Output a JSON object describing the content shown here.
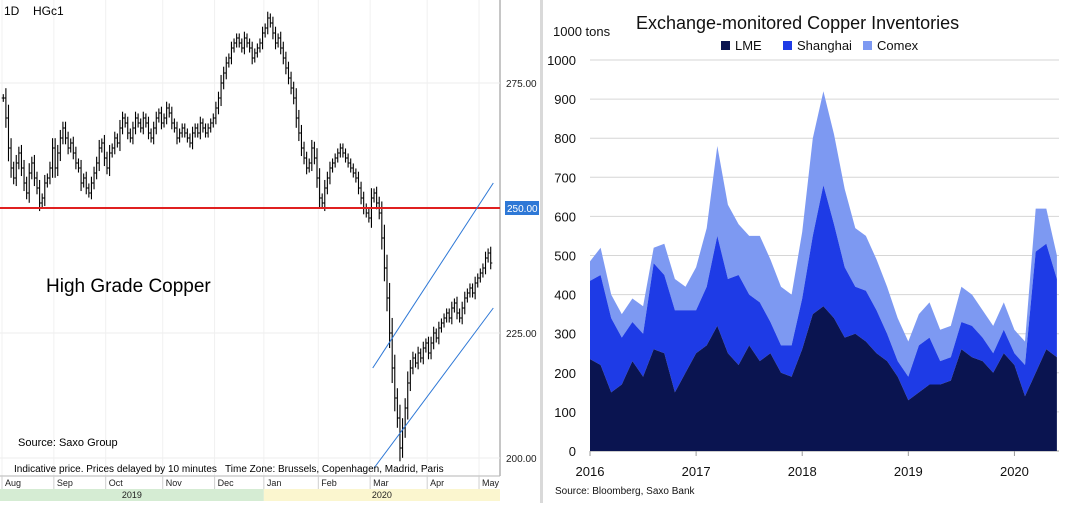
{
  "chart_data": [
    {
      "type": "ohlc",
      "interval": "1D",
      "symbol": "HGc1",
      "title": "High Grade Copper",
      "source": "Source: Saxo Group",
      "footer": "Indicative price. Prices delayed by 10 minutes   Time Zone: Brussels, Copenhagen, Madrid, Paris",
      "y_ticks": [
        "275.00",
        "250.00",
        "225.00",
        "200.00"
      ],
      "ylim": [
        198,
        290
      ],
      "horizontal_level": {
        "value": 250,
        "label": "250.00",
        "color": "#e02020"
      },
      "channel_lines": [
        {
          "from": [
            "Mar",
            218
          ],
          "to": [
            "May",
            255
          ]
        },
        {
          "from": [
            "Mar",
            198
          ],
          "to": [
            "May",
            230
          ]
        }
      ],
      "month_labels": [
        "Aug",
        "Sep",
        "Oct",
        "Nov",
        "Dec",
        "Jan",
        "Feb",
        "Mar",
        "Apr",
        "May"
      ],
      "year_labels": [
        "2019",
        "2020"
      ],
      "year_colors": {
        "2019": "#d5ecd3",
        "2020": "#fbf6cf"
      },
      "months": [
        {
          "m": "Aug",
          "close": [
            272,
            268,
            262,
            258,
            256,
            259,
            261,
            258,
            255,
            253,
            257,
            259,
            256,
            254,
            251,
            252,
            255,
            256,
            258,
            262
          ]
        },
        {
          "m": "Sep",
          "close": [
            258,
            261,
            264,
            266,
            264,
            262,
            263,
            261,
            259,
            258,
            255,
            256,
            254,
            253,
            255,
            257,
            259,
            262,
            263,
            260
          ]
        },
        {
          "m": "Oct",
          "close": [
            258,
            261,
            262,
            264,
            263,
            266,
            268,
            267,
            265,
            264,
            266,
            268,
            267,
            266,
            268,
            267,
            265,
            264,
            266,
            268,
            269,
            267
          ]
        },
        {
          "m": "Nov",
          "close": [
            268,
            270,
            269,
            267,
            266,
            264,
            265,
            266,
            265,
            264,
            263,
            265,
            266,
            265,
            267,
            266,
            265,
            266,
            267,
            268
          ]
        },
        {
          "m": "Dec",
          "close": [
            270,
            272,
            275,
            277,
            279,
            280,
            282,
            283,
            284,
            283,
            282,
            284,
            283,
            282,
            280,
            281,
            282,
            283,
            285
          ]
        },
        {
          "m": "Jan",
          "close": [
            286,
            288,
            287,
            285,
            283,
            284,
            282,
            280,
            278,
            276,
            274,
            272,
            268,
            265,
            262,
            260,
            258,
            259,
            262,
            260,
            256
          ]
        },
        {
          "m": "Feb",
          "close": [
            252,
            251,
            254,
            256,
            258,
            259,
            260,
            261,
            262,
            261,
            260,
            259,
            258,
            257,
            256,
            254,
            252,
            250,
            249,
            248
          ]
        },
        {
          "m": "Mar",
          "close": [
            252,
            253,
            251,
            249,
            244,
            238,
            232,
            225,
            218,
            212,
            208,
            202,
            206,
            210,
            215,
            218,
            220,
            219,
            221,
            220,
            222,
            223
          ]
        },
        {
          "m": "Apr",
          "close": [
            221,
            223,
            225,
            224,
            226,
            227,
            228,
            229,
            228,
            230,
            231,
            229,
            228,
            230,
            232,
            233,
            234,
            233,
            235,
            236
          ]
        },
        {
          "m": "May",
          "close": [
            237,
            238,
            240,
            241,
            239
          ]
        }
      ]
    },
    {
      "type": "area",
      "stacked": true,
      "title": "Exchange-monitored Copper Inventories",
      "ylabel": "1000 tons",
      "ylim": [
        0,
        1000
      ],
      "y_ticks": [
        0,
        100,
        200,
        300,
        400,
        500,
        600,
        700,
        800,
        900,
        1000
      ],
      "x_ticks": [
        "2016",
        "2017",
        "2018",
        "2019",
        "2020"
      ],
      "xlim": [
        2016,
        2020.42
      ],
      "legend_position": "top",
      "grid": true,
      "source": "Source: Bloomberg, Saxo Bank",
      "x": [
        2016.0,
        2016.1,
        2016.2,
        2016.3,
        2016.4,
        2016.5,
        2016.6,
        2016.7,
        2016.8,
        2016.9,
        2017.0,
        2017.1,
        2017.2,
        2017.3,
        2017.4,
        2017.5,
        2017.6,
        2017.7,
        2017.8,
        2017.9,
        2018.0,
        2018.1,
        2018.2,
        2018.3,
        2018.4,
        2018.5,
        2018.6,
        2018.7,
        2018.8,
        2018.9,
        2019.0,
        2019.1,
        2019.2,
        2019.3,
        2019.4,
        2019.5,
        2019.6,
        2019.7,
        2019.8,
        2019.9,
        2020.0,
        2020.1,
        2020.2,
        2020.3,
        2020.4
      ],
      "series": [
        {
          "name": "LME",
          "color": "#0a1450",
          "values": [
            235,
            220,
            150,
            170,
            230,
            190,
            260,
            250,
            150,
            200,
            250,
            270,
            320,
            250,
            220,
            270,
            230,
            250,
            200,
            190,
            260,
            350,
            370,
            340,
            290,
            300,
            280,
            250,
            230,
            190,
            130,
            150,
            170,
            170,
            180,
            260,
            240,
            230,
            200,
            250,
            220,
            140,
            200,
            260,
            240
          ]
        },
        {
          "name": "Shanghai",
          "color": "#1e3be6",
          "values": [
            200,
            230,
            190,
            120,
            100,
            110,
            220,
            200,
            210,
            160,
            110,
            150,
            230,
            190,
            230,
            130,
            150,
            80,
            70,
            80,
            130,
            200,
            310,
            240,
            180,
            120,
            130,
            110,
            70,
            40,
            60,
            120,
            120,
            60,
            60,
            70,
            80,
            60,
            50,
            60,
            30,
            80,
            310,
            270,
            200
          ]
        },
        {
          "name": "Comex",
          "color": "#7d99f2",
          "values": [
            50,
            70,
            60,
            60,
            60,
            70,
            40,
            80,
            80,
            60,
            110,
            150,
            230,
            190,
            130,
            150,
            170,
            160,
            150,
            130,
            170,
            250,
            240,
            230,
            200,
            150,
            140,
            130,
            120,
            110,
            90,
            80,
            90,
            80,
            80,
            90,
            80,
            70,
            70,
            70,
            60,
            60,
            110,
            90,
            60
          ]
        }
      ]
    }
  ]
}
